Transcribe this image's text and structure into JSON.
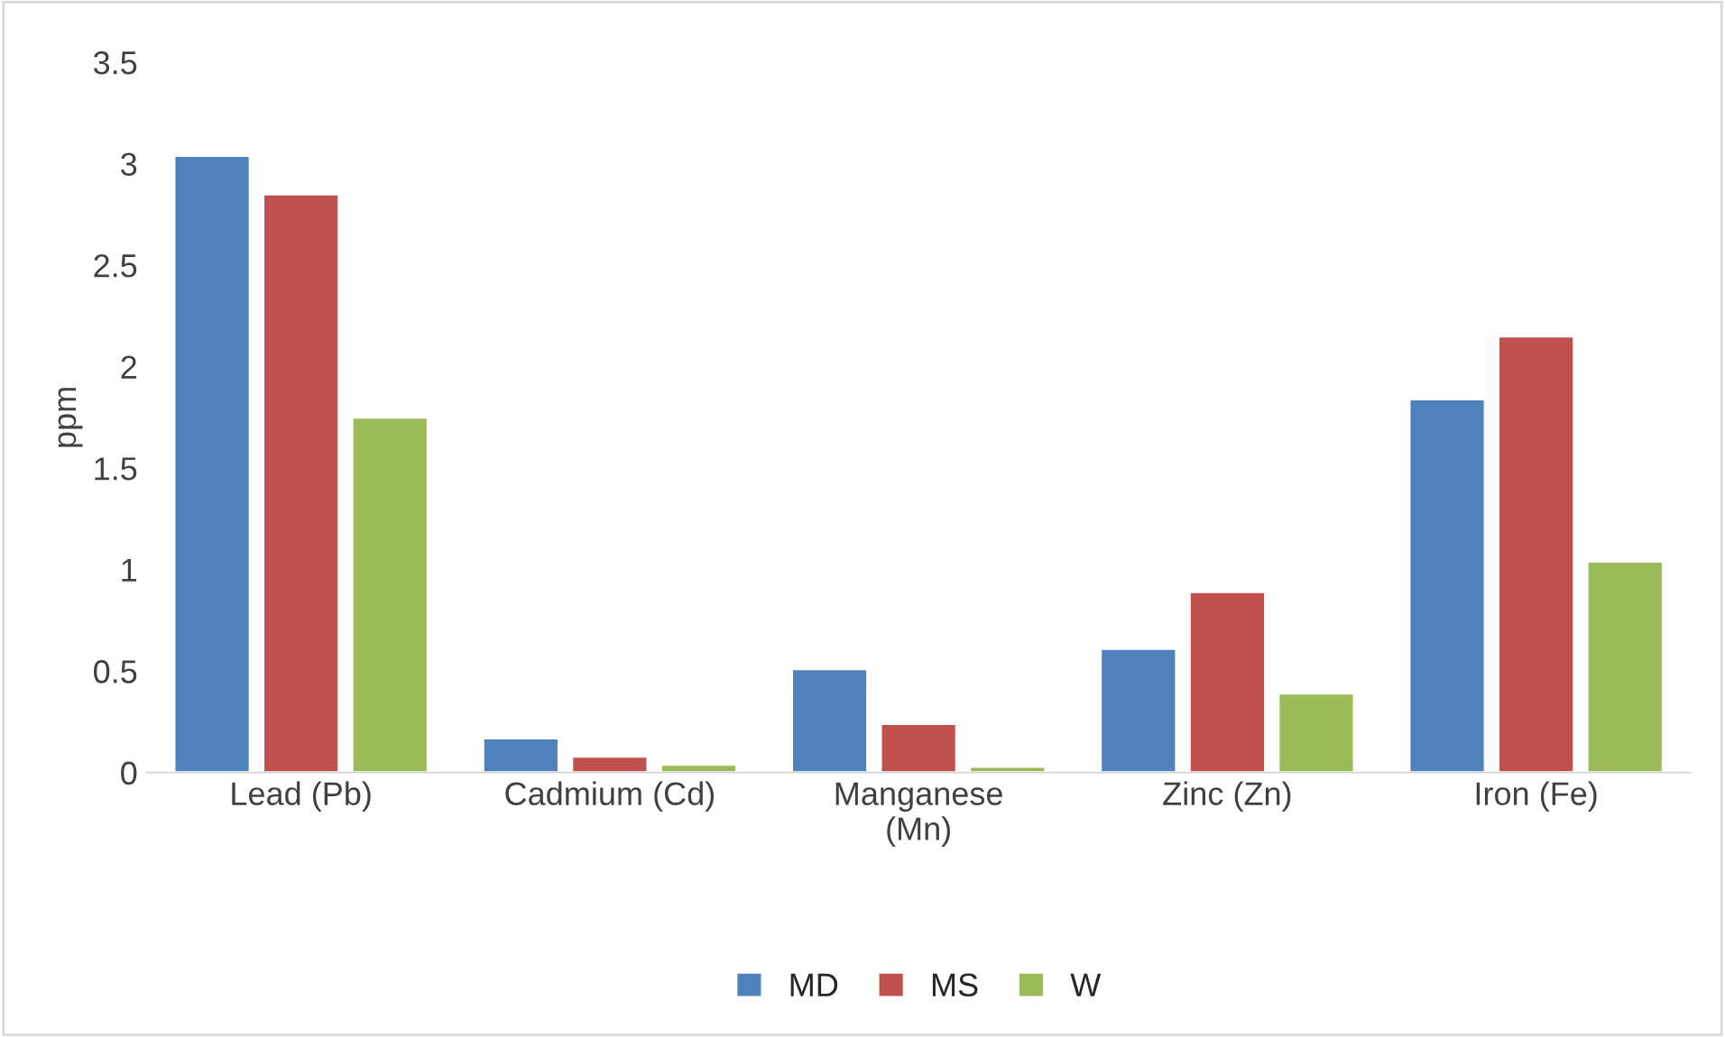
{
  "chart_data": {
    "type": "bar",
    "ylabel": "ppm",
    "categories": [
      "Lead (Pb)",
      "Cadmium (Cd)",
      "Manganese\n(Mn)",
      "Zinc (Zn)",
      "Iron (Fe)"
    ],
    "series": [
      {
        "name": "MD",
        "color": "#4f81bd",
        "values": [
          3.04,
          0.17,
          0.51,
          0.61,
          1.84
        ]
      },
      {
        "name": "MS",
        "color": "#c0504d",
        "values": [
          2.85,
          0.08,
          0.24,
          0.89,
          2.15
        ]
      },
      {
        "name": "W",
        "color": "#9bbb59",
        "values": [
          1.75,
          0.04,
          0.03,
          0.39,
          1.04
        ]
      }
    ],
    "ylim": [
      0,
      3.5
    ],
    "yticks": [
      0,
      0.5,
      1,
      1.5,
      2,
      2.5,
      3,
      3.5
    ],
    "grid": false,
    "legend": "bottom"
  }
}
